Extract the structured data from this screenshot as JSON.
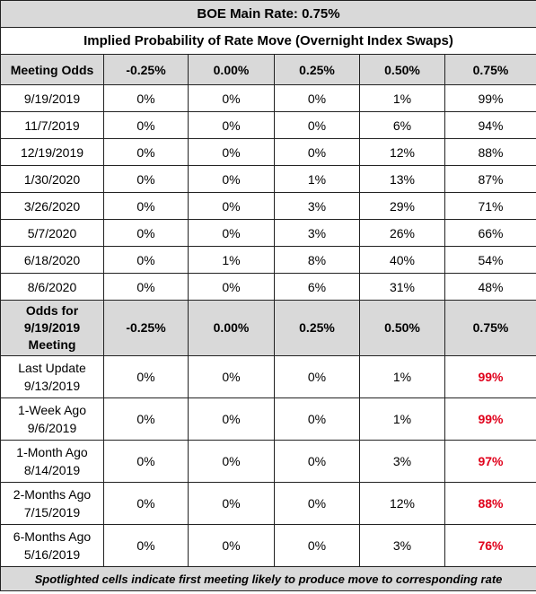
{
  "header": {
    "title": "BOE Main Rate: 0.75%",
    "subtitle": "Implied Probability of Rate Move (Overnight Index Swaps)"
  },
  "meetings": {
    "columns": [
      "Meeting Odds",
      "-0.25%",
      "0.00%",
      "0.25%",
      "0.50%",
      "0.75%"
    ],
    "rows": [
      [
        "9/19/2019",
        "0%",
        "0%",
        "0%",
        "1%",
        "99%"
      ],
      [
        "11/7/2019",
        "0%",
        "0%",
        "0%",
        "6%",
        "94%"
      ],
      [
        "12/19/2019",
        "0%",
        "0%",
        "0%",
        "12%",
        "88%"
      ],
      [
        "1/30/2020",
        "0%",
        "0%",
        "1%",
        "13%",
        "87%"
      ],
      [
        "3/26/2020",
        "0%",
        "0%",
        "3%",
        "29%",
        "71%"
      ],
      [
        "5/7/2020",
        "0%",
        "0%",
        "3%",
        "26%",
        "66%"
      ],
      [
        "6/18/2020",
        "0%",
        "1%",
        "8%",
        "40%",
        "54%"
      ],
      [
        "8/6/2020",
        "0%",
        "0%",
        "6%",
        "31%",
        "48%"
      ]
    ]
  },
  "history": {
    "columns": [
      "Odds for 9/19/2019 Meeting",
      "-0.25%",
      "0.00%",
      "0.25%",
      "0.50%",
      "0.75%"
    ],
    "rows": [
      [
        [
          "Last Update",
          "9/13/2019"
        ],
        "0%",
        "0%",
        "0%",
        "1%",
        "99%"
      ],
      [
        [
          "1-Week Ago",
          "9/6/2019"
        ],
        "0%",
        "0%",
        "0%",
        "1%",
        "99%"
      ],
      [
        [
          "1-Month Ago",
          "8/14/2019"
        ],
        "0%",
        "0%",
        "0%",
        "3%",
        "97%"
      ],
      [
        [
          "2-Months Ago",
          "7/15/2019"
        ],
        "0%",
        "0%",
        "0%",
        "12%",
        "88%"
      ],
      [
        [
          "6-Months Ago",
          "5/16/2019"
        ],
        "0%",
        "0%",
        "0%",
        "3%",
        "76%"
      ]
    ]
  },
  "footnote": "Spotlighted cells indicate first meeting likely to produce move to corresponding rate"
}
